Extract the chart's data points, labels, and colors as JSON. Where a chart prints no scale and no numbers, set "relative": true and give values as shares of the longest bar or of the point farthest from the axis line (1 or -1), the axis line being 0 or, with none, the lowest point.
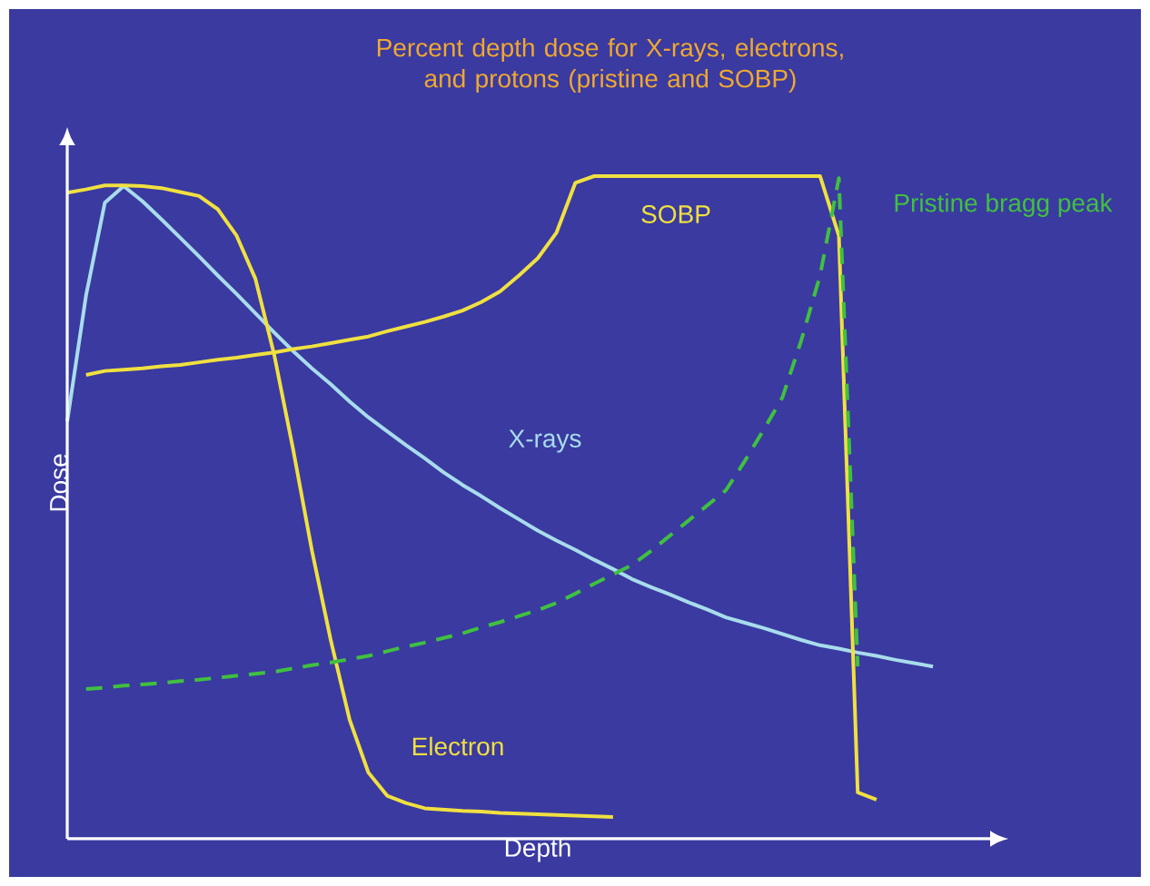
{
  "chart_data": {
    "type": "line",
    "title": "Percent depth dose for X-rays, electrons, and protons (pristine and SOBP)",
    "xlabel": "Depth",
    "ylabel": "Dose",
    "relative": true,
    "marker": "none",
    "categories": [
      null,
      null,
      null,
      null,
      null,
      null,
      null,
      null,
      null,
      null,
      null,
      null,
      null,
      null,
      null,
      null,
      null,
      null,
      null,
      null,
      null,
      null,
      null,
      null,
      null,
      null,
      null,
      null,
      null,
      null,
      null,
      null,
      null,
      null,
      null,
      null,
      null,
      null,
      null,
      null,
      null,
      null,
      null,
      null,
      null,
      null,
      null
    ],
    "series": [
      {
        "name": "X-rays",
        "color": "#a8dcec",
        "line_style": "solid",
        "values": [
          0.63,
          0.82,
          0.96,
          0.985,
          0.962,
          0.935,
          0.907,
          0.879,
          0.85,
          0.822,
          0.793,
          0.764,
          0.736,
          0.71,
          0.686,
          0.66,
          0.636,
          0.615,
          0.594,
          0.574,
          0.553,
          0.534,
          0.517,
          0.499,
          0.482,
          0.465,
          0.45,
          0.436,
          0.421,
          0.407,
          0.392,
          0.38,
          0.369,
          0.357,
          0.346,
          0.334,
          0.326,
          0.318,
          0.309,
          0.3,
          0.292,
          0.287,
          0.281,
          0.276,
          0.27,
          0.265,
          0.26
        ]
      },
      {
        "name": "Electron",
        "color": "#f0e040",
        "line_style": "solid",
        "values": [
          0.975,
          0.98,
          0.986,
          0.986,
          0.985,
          0.982,
          0.976,
          0.97,
          0.95,
          0.91,
          0.845,
          0.73,
          0.588,
          0.435,
          0.3,
          0.18,
          0.1,
          0.065,
          0.054,
          0.046,
          0.044,
          0.042,
          0.041,
          0.039,
          0.038,
          0.037,
          0.036,
          0.035,
          0.034,
          0.033,
          null,
          null,
          null,
          null,
          null,
          null,
          null,
          null,
          null,
          null,
          null,
          null,
          null,
          null,
          null,
          null,
          null
        ]
      },
      {
        "name": "SOBP",
        "color": "#f0e040",
        "line_style": "solid",
        "values": [
          null,
          0.7,
          0.706,
          0.708,
          0.71,
          0.713,
          0.715,
          0.719,
          0.723,
          0.726,
          0.73,
          0.734,
          0.739,
          0.743,
          0.748,
          0.753,
          0.758,
          0.766,
          0.773,
          0.78,
          0.788,
          0.797,
          0.81,
          0.826,
          0.85,
          0.876,
          0.915,
          0.99,
          1.0,
          1.0,
          1.0,
          1.0,
          1.0,
          1.0,
          1.0,
          1.0,
          1.0,
          1.0,
          1.0,
          1.0,
          1.0,
          0.91,
          0.07,
          0.059,
          null,
          null,
          null
        ]
      },
      {
        "name": "Pristine bragg peak",
        "color": "#40c040",
        "line_style": "dashed",
        "values": [
          null,
          0.226,
          0.228,
          0.231,
          0.233,
          0.235,
          0.238,
          0.24,
          0.243,
          0.246,
          0.249,
          0.252,
          0.257,
          0.262,
          0.266,
          0.271,
          0.276,
          0.283,
          0.29,
          0.296,
          0.303,
          0.31,
          0.319,
          0.327,
          0.336,
          0.345,
          0.356,
          0.37,
          0.385,
          0.399,
          0.413,
          0.434,
          0.457,
          0.48,
          0.503,
          0.526,
          0.57,
          0.617,
          0.666,
          0.752,
          0.85,
          0.997,
          0.26,
          null,
          null,
          null,
          null
        ]
      }
    ]
  }
}
